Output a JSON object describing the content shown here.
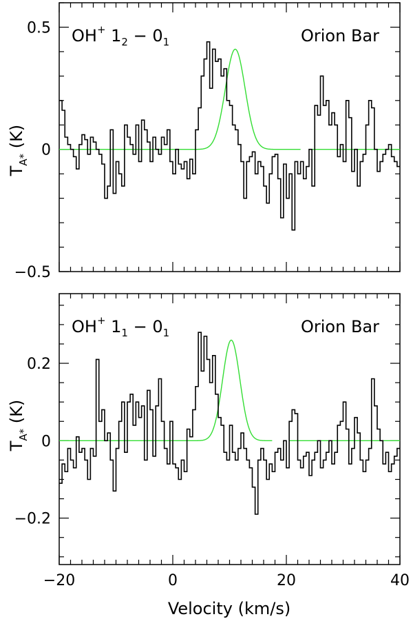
{
  "chart_data": [
    {
      "type": "line",
      "title": "",
      "xlabel": "",
      "ylabel": "T_A* (K)",
      "ylabel_main": "T",
      "ylabel_sub": "A*",
      "ylabel_unit": " (K)",
      "xlim": [
        -20,
        40
      ],
      "ylim": [
        -0.5,
        0.6
      ],
      "yticks": [
        -0.5,
        0,
        0.5
      ],
      "ytick_labels": [
        "−0.5",
        "0",
        "0.5"
      ],
      "xticks": [
        -20,
        0,
        20,
        40
      ],
      "annotations": {
        "species": "OH",
        "species_sup": "+",
        "transition_upper": "1",
        "transition_upper_sub": "2",
        "dash": " − ",
        "transition_lower": "0",
        "transition_lower_sub": "1",
        "source": "Orion Bar"
      },
      "colors": {
        "spectrum": "#000000",
        "fit": "#33dd33"
      },
      "series": [
        {
          "style": "steps",
          "x": [
            -20,
            -19.5,
            -19,
            -18.5,
            -18,
            -17.5,
            -17,
            -16.5,
            -16,
            -15.5,
            -15,
            -14.5,
            -14,
            -13.5,
            -13,
            -12.5,
            -12,
            -11.5,
            -11,
            -10.5,
            -10,
            -9.5,
            -9,
            -8.5,
            -8,
            -7.5,
            -7,
            -6.5,
            -6,
            -5.5,
            -5,
            -4.5,
            -4,
            -3.5,
            -3,
            -2.5,
            -2,
            -1.5,
            -1,
            -0.5,
            0,
            0.5,
            1,
            1.5,
            2,
            2.5,
            3,
            3.5,
            4,
            4.5,
            5,
            5.5,
            6,
            6.5,
            7,
            7.5,
            8,
            8.5,
            9,
            9.5,
            10,
            10.5,
            11,
            11.5,
            12,
            12.5,
            13,
            13.5,
            14,
            14.5,
            15,
            15.5,
            16,
            16.5,
            17,
            17.5,
            18,
            18.5,
            19,
            19.5,
            20,
            20.5,
            21,
            21.5,
            22,
            22.5,
            23,
            23.5,
            24,
            24.5,
            25,
            25.5,
            26,
            26.5,
            27,
            27.5,
            28,
            28.5,
            29,
            29.5,
            30,
            30.5,
            31,
            31.5,
            32,
            32.5,
            33,
            33.5,
            34,
            34.5,
            35,
            35.5,
            36,
            36.5,
            37,
            37.5,
            38,
            38.5,
            39,
            39.5
          ],
          "values": [
            0.2,
            0.16,
            0.05,
            0.02,
            0.0,
            -0.03,
            -0.08,
            0.02,
            0.06,
            0.04,
            -0.02,
            0.05,
            0.03,
            0.0,
            -0.02,
            -0.06,
            -0.2,
            -0.15,
            0.08,
            -0.18,
            -0.05,
            -0.1,
            -0.15,
            0.1,
            0.05,
            0.02,
            -0.02,
            0.1,
            -0.05,
            0.12,
            0.08,
            0.03,
            -0.05,
            0.05,
            0.0,
            -0.02,
            0.05,
            0.02,
            0.08,
            -0.05,
            -0.1,
            0.0,
            -0.06,
            -0.08,
            -0.05,
            -0.12,
            -0.04,
            -0.1,
            0.08,
            0.17,
            0.3,
            0.37,
            0.44,
            0.25,
            0.41,
            0.36,
            0.37,
            0.3,
            0.33,
            0.2,
            0.18,
            0.1,
            0.08,
            0.02,
            -0.05,
            -0.2,
            -0.05,
            -0.03,
            -0.01,
            -0.1,
            -0.05,
            -0.07,
            -0.15,
            -0.22,
            -0.1,
            -0.03,
            -0.02,
            -0.12,
            -0.28,
            -0.06,
            -0.2,
            -0.1,
            -0.33,
            -0.05,
            -0.1,
            -0.05,
            -0.12,
            -0.07,
            0.0,
            -0.15,
            0.18,
            0.14,
            0.3,
            0.18,
            0.2,
            0.1,
            0.15,
            0.1,
            -0.03,
            0.02,
            -0.05,
            0.2,
            0.13,
            -0.09,
            0.0,
            -0.15,
            -0.05,
            -0.02,
            0.1,
            0.2,
            0.17,
            0.0,
            -0.09,
            -0.05,
            -0.02,
            0.0,
            0.02,
            -0.03,
            -0.05,
            -0.07
          ]
        },
        {
          "style": "gaussian",
          "amplitude": 0.41,
          "center": 11.0,
          "fwhm": 4.1,
          "x_range": [
            -20,
            40
          ],
          "gap": [
            22.5,
            24.0
          ]
        }
      ]
    },
    {
      "type": "line",
      "title": "",
      "xlabel": "Velocity (km/s)",
      "ylabel": "T_A* (K)",
      "ylabel_main": "T",
      "ylabel_sub": "A*",
      "ylabel_unit": " (K)",
      "xlim": [
        -20,
        40
      ],
      "ylim": [
        -0.32,
        0.38
      ],
      "yticks": [
        -0.2,
        0,
        0.2
      ],
      "ytick_labels": [
        "−0.2",
        "0",
        "0.2"
      ],
      "xticks": [
        -20,
        0,
        20,
        40
      ],
      "xtick_labels": [
        "−20",
        "0",
        "20",
        "40"
      ],
      "annotations": {
        "species": "OH",
        "species_sup": "+",
        "transition_upper": "1",
        "transition_upper_sub": "1",
        "dash": " − ",
        "transition_lower": "0",
        "transition_lower_sub": "1",
        "source": "Orion Bar"
      },
      "colors": {
        "spectrum": "#000000",
        "fit": "#33dd33"
      },
      "series": [
        {
          "style": "steps",
          "x": [
            -20,
            -19.5,
            -19,
            -18.5,
            -18,
            -17.5,
            -17,
            -16.5,
            -16,
            -15.5,
            -15,
            -14.5,
            -14,
            -13.5,
            -13,
            -12.5,
            -12,
            -11.5,
            -11,
            -10.5,
            -10,
            -9.5,
            -9,
            -8.5,
            -8,
            -7.5,
            -7,
            -6.5,
            -6,
            -5.5,
            -5,
            -4.5,
            -4,
            -3.5,
            -3,
            -2.5,
            -2,
            -1.5,
            -1,
            -0.5,
            0,
            0.5,
            1,
            1.5,
            2,
            2.5,
            3,
            3.5,
            4,
            4.5,
            5,
            5.5,
            6,
            6.5,
            7,
            7.5,
            8,
            8.5,
            9,
            9.5,
            10,
            10.5,
            11,
            11.5,
            12,
            12.5,
            13,
            13.5,
            14,
            14.5,
            15,
            15.5,
            16,
            16.5,
            17,
            17.5,
            18,
            18.5,
            19,
            19.5,
            20,
            20.5,
            21,
            21.5,
            22,
            22.5,
            23,
            23.5,
            24,
            24.5,
            25,
            25.5,
            26,
            26.5,
            27,
            27.5,
            28,
            28.5,
            29,
            29.5,
            30,
            30.5,
            31,
            31.5,
            32,
            32.5,
            33,
            33.5,
            34,
            34.5,
            35,
            35.5,
            36,
            36.5,
            37,
            37.5,
            38,
            38.5,
            39,
            39.5
          ],
          "values": [
            -0.11,
            -0.06,
            -0.08,
            -0.02,
            -0.05,
            -0.07,
            0.01,
            -0.03,
            -0.02,
            -0.05,
            -0.1,
            -0.02,
            -0.04,
            0.21,
            0.05,
            0.08,
            0.0,
            0.02,
            -0.05,
            -0.13,
            -0.02,
            0.05,
            0.1,
            -0.03,
            0.1,
            0.12,
            0.04,
            0.1,
            0.06,
            0.09,
            -0.05,
            0.13,
            0.08,
            -0.04,
            0.09,
            0.16,
            0.05,
            -0.02,
            -0.06,
            0.05,
            -0.06,
            -0.07,
            -0.1,
            -0.05,
            -0.08,
            0.03,
            0.01,
            0.08,
            0.14,
            0.28,
            0.18,
            0.27,
            0.21,
            0.15,
            0.22,
            0.12,
            0.06,
            0.04,
            -0.03,
            -0.05,
            0.04,
            -0.03,
            -0.05,
            -0.02,
            0.02,
            -0.02,
            -0.05,
            -0.07,
            -0.12,
            -0.19,
            -0.05,
            -0.02,
            -0.05,
            -0.1,
            -0.06,
            -0.08,
            -0.03,
            -0.02,
            -0.05,
            0.0,
            -0.07,
            0.05,
            0.08,
            0.07,
            -0.05,
            -0.07,
            -0.04,
            -0.03,
            -0.09,
            -0.05,
            -0.03,
            0.0,
            -0.07,
            -0.05,
            -0.03,
            0.0,
            -0.06,
            -0.03,
            0.04,
            0.05,
            0.1,
            0.03,
            -0.06,
            -0.02,
            0.06,
            0.02,
            -0.05,
            -0.08,
            -0.05,
            -0.02,
            0.16,
            0.09,
            0.03,
            0.0,
            -0.06,
            -0.03,
            -0.08,
            -0.06,
            -0.04,
            -0.02
          ]
        },
        {
          "style": "gaussian",
          "amplitude": 0.26,
          "center": 10.3,
          "fwhm": 3.6,
          "x_range": [
            -20,
            40
          ],
          "gap": [
            17.5,
            20.5
          ]
        }
      ]
    }
  ]
}
